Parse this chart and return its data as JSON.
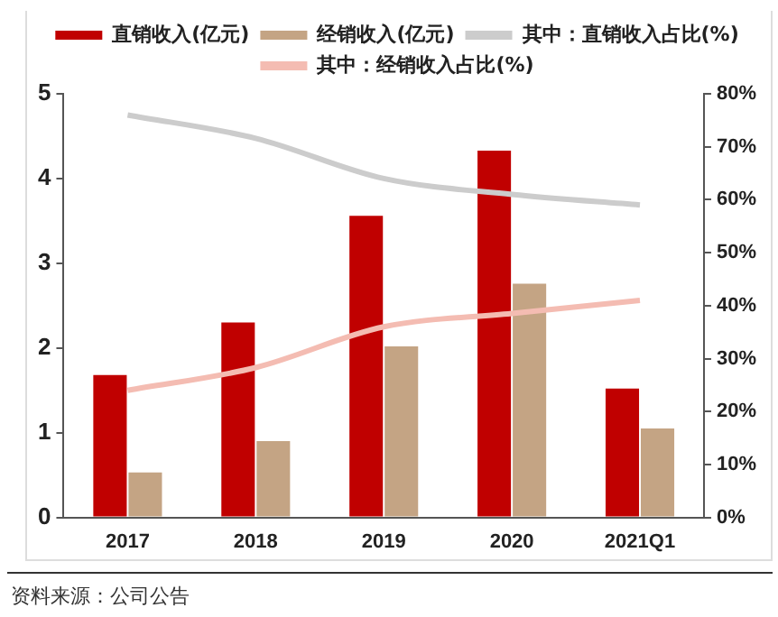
{
  "chart_data": {
    "type": "bar",
    "categories": [
      "2017",
      "2018",
      "2019",
      "2020",
      "2021Q1"
    ],
    "series": [
      {
        "name": "直销收入(亿元)",
        "color": "#c00000",
        "values": [
          1.68,
          2.3,
          3.56,
          4.33,
          1.52
        ]
      },
      {
        "name": "经销收入(亿元)",
        "color": "#c4a484",
        "values": [
          0.53,
          0.9,
          2.02,
          2.76,
          1.05
        ]
      },
      {
        "name": "其中：直销收入占比(%)",
        "type": "line",
        "axis": "y2",
        "color": "#cccccc",
        "values": [
          76,
          71.6,
          64,
          61,
          59
        ]
      },
      {
        "name": "其中：经销收入占比(%)",
        "type": "line",
        "axis": "y2",
        "color": "#f4bcb2",
        "values": [
          24,
          28.3,
          36,
          38.5,
          41
        ]
      }
    ],
    "ylim": [
      0,
      5
    ],
    "yticks": [
      0,
      1,
      2,
      3,
      4,
      5
    ],
    "y2lim": [
      0,
      80
    ],
    "y2ticks": [
      {
        "value": 0,
        "label": "0%"
      },
      {
        "value": 10,
        "label": "10%"
      },
      {
        "value": 20,
        "label": "20%"
      },
      {
        "value": 30,
        "label": "30%"
      },
      {
        "value": 40,
        "label": "40%"
      },
      {
        "value": 50,
        "label": "50%"
      },
      {
        "value": 60,
        "label": "60%"
      },
      {
        "value": 70,
        "label": "70%"
      },
      {
        "value": 80,
        "label": "80%"
      }
    ],
    "grid": false,
    "legend": "top",
    "marker": "none",
    "annotations": [
      "资料来源：公司公告"
    ]
  }
}
